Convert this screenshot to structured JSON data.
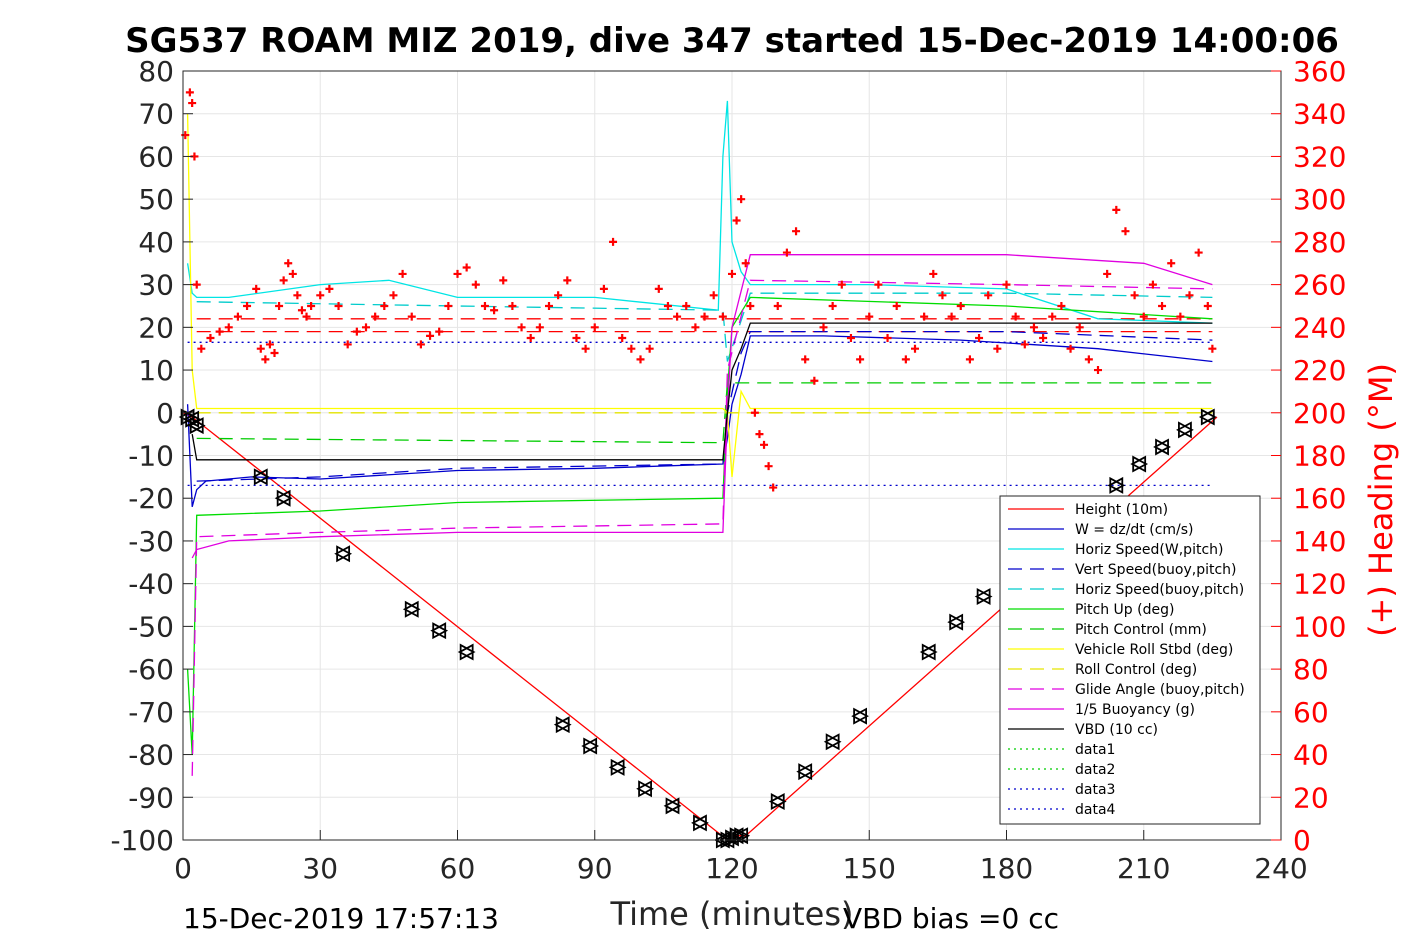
{
  "chart_data": {
    "type": "line",
    "title": "SG537 ROAM MIZ 2019, dive 347 started 15-Dec-2019 14:00:06",
    "xlabel": "Time (minutes)",
    "ylabel_right": "(+) Heading (°M)",
    "xlim": [
      0,
      240
    ],
    "ylim_left": [
      -100,
      80
    ],
    "ylim_right": [
      0,
      360
    ],
    "x_ticks": [
      "0",
      "30",
      "60",
      "90",
      "120",
      "150",
      "180",
      "210",
      "240"
    ],
    "y_ticks_left": [
      "-100",
      "-90",
      "-80",
      "-70",
      "-60",
      "-50",
      "-40",
      "-30",
      "-20",
      "-10",
      "0",
      "10",
      "20",
      "30",
      "40",
      "50",
      "60",
      "70",
      "80"
    ],
    "y_ticks_right": [
      "0",
      "20",
      "40",
      "60",
      "80",
      "100",
      "120",
      "140",
      "160",
      "180",
      "200",
      "220",
      "240",
      "260",
      "280",
      "300",
      "320",
      "340",
      "360"
    ],
    "grid": true,
    "legend_position": "bottom-right",
    "footer_left": "15-Dec-2019 17:57:13",
    "footer_right": "VBD bias =0 cc",
    "series": [
      {
        "name": "Height (10m)",
        "color": "#ff0000",
        "style": "solid",
        "x": [
          0,
          2,
          119,
          121,
          123,
          226
        ],
        "y": [
          0,
          -1,
          -100,
          -99,
          -99,
          -1
        ]
      },
      {
        "name": "W = dz/dt (cm/s)",
        "color": "#0000cc",
        "style": "solid",
        "x": [
          1,
          2,
          3,
          5,
          15,
          30,
          60,
          90,
          118,
          119,
          120,
          122,
          124,
          140,
          170,
          200,
          225
        ],
        "y": [
          2,
          -22,
          -18,
          -16,
          -15,
          -15.5,
          -13.5,
          -13,
          -12,
          -6,
          2,
          9,
          18,
          18,
          17,
          15,
          12
        ]
      },
      {
        "name": "Horiz Speed(W,pitch)",
        "color": "#00e5e5",
        "style": "solid",
        "x": [
          1,
          2,
          3,
          10,
          30,
          45,
          60,
          90,
          117,
          118,
          119,
          120,
          122,
          124,
          150,
          180,
          200,
          225
        ],
        "y": [
          35,
          28,
          27,
          27,
          30,
          31,
          27,
          27,
          24,
          60,
          73,
          40,
          33,
          30,
          30,
          29,
          22,
          21
        ]
      },
      {
        "name": "Vert Speed(buoy,pitch)",
        "color": "#0000cc",
        "style": "dash",
        "x": [
          3,
          30,
          60,
          118,
          119,
          122,
          124,
          180,
          225
        ],
        "y": [
          -16,
          -15,
          -13,
          -12,
          0,
          14,
          19,
          19,
          17
        ]
      },
      {
        "name": "Horiz Speed(buoy,pitch)",
        "color": "#00cccc",
        "style": "dash",
        "x": [
          3,
          60,
          118,
          119,
          124,
          180,
          225
        ],
        "y": [
          26,
          25,
          24,
          12,
          28,
          28,
          27
        ]
      },
      {
        "name": "Pitch Up (deg)",
        "color": "#00dd00",
        "style": "solid",
        "x": [
          1,
          2,
          3,
          30,
          60,
          118,
          119,
          120,
          124,
          180,
          225
        ],
        "y": [
          -60,
          -80,
          -24,
          -23,
          -21,
          -20,
          5,
          20,
          27,
          25,
          22
        ]
      },
      {
        "name": "Pitch Control (mm)",
        "color": "#00cc00",
        "style": "dash",
        "x": [
          3,
          118,
          119,
          225
        ],
        "y": [
          -6,
          -7,
          7,
          7
        ]
      },
      {
        "name": "Vehicle Roll Stbd (deg)",
        "color": "#ffff00",
        "style": "solid",
        "x": [
          1,
          2,
          3,
          60,
          118,
          119,
          120,
          122,
          124,
          180,
          225
        ],
        "y": [
          70,
          10,
          1,
          1,
          1,
          0,
          -15,
          5,
          1,
          1,
          1
        ]
      },
      {
        "name": "Roll Control (deg)",
        "color": "#e5e500",
        "style": "dash",
        "x": [
          3,
          118,
          119,
          225
        ],
        "y": [
          0,
          0,
          0,
          0
        ]
      },
      {
        "name": "Glide Angle (buoy,pitch)",
        "color": "#e000e0",
        "style": "dash",
        "x": [
          2,
          3,
          30,
          60,
          118,
          119,
          124,
          180,
          225
        ],
        "y": [
          -85,
          -29,
          -28,
          -27,
          -26,
          10,
          31,
          30,
          29
        ]
      },
      {
        "name": "1/5 Buoyancy (g)",
        "color": "#e000e0",
        "style": "solid",
        "x": [
          2,
          3,
          10,
          30,
          60,
          118,
          119,
          120,
          124,
          180,
          210,
          225
        ],
        "y": [
          -34,
          -32,
          -30,
          -29,
          -28,
          -28,
          0,
          20,
          37,
          37,
          35,
          30
        ]
      },
      {
        "name": "VBD (10 cc)",
        "color": "#000000",
        "style": "solid",
        "x": [
          2,
          3,
          118,
          119,
          120,
          122,
          124,
          225
        ],
        "y": [
          -5,
          -11,
          -11,
          0,
          10,
          15,
          21,
          21
        ]
      },
      {
        "name": "data1",
        "color": "#00cc00",
        "style": "dot",
        "x": [],
        "y": []
      },
      {
        "name": "data2",
        "color": "#00cc00",
        "style": "dot",
        "x": [],
        "y": []
      },
      {
        "name": "data3",
        "color": "#0000cc",
        "style": "dot",
        "x": [
          1,
          225
        ],
        "y": [
          -17,
          -17
        ]
      },
      {
        "name": "data4",
        "color": "#0000cc",
        "style": "dot",
        "x": [
          1,
          225
        ],
        "y": [
          16.5,
          16.5
        ]
      }
    ],
    "extra_lines": [
      {
        "color": "#ff0000",
        "style": "dash",
        "x": [
          3,
          225
        ],
        "y": [
          22,
          22
        ]
      },
      {
        "color": "#ff0000",
        "style": "dash",
        "x": [
          3,
          225
        ],
        "y": [
          19,
          19
        ]
      }
    ],
    "heading": {
      "axis": "right",
      "marker": "+",
      "color": "#ff0000",
      "x": [
        0.5,
        1.5,
        2,
        2.5,
        3,
        4,
        6,
        8,
        10,
        12,
        14,
        16,
        17,
        18,
        19,
        20,
        21,
        22,
        23,
        24,
        25,
        26,
        27,
        28,
        30,
        32,
        34,
        36,
        38,
        40,
        42,
        44,
        46,
        48,
        50,
        52,
        54,
        56,
        58,
        60,
        62,
        64,
        66,
        68,
        70,
        72,
        74,
        76,
        78,
        80,
        82,
        84,
        86,
        88,
        90,
        92,
        94,
        96,
        98,
        100,
        102,
        104,
        106,
        108,
        110,
        112,
        114,
        116,
        118,
        120,
        121,
        122,
        123,
        124,
        125,
        126,
        127,
        128,
        129,
        130,
        132,
        134,
        136,
        138,
        140,
        142,
        144,
        146,
        148,
        150,
        152,
        154,
        156,
        158,
        160,
        162,
        164,
        166,
        168,
        170,
        172,
        174,
        176,
        178,
        180,
        182,
        184,
        186,
        188,
        190,
        192,
        194,
        196,
        198,
        200,
        202,
        204,
        206,
        208,
        210,
        212,
        214,
        216,
        218,
        220,
        222,
        224,
        225
      ],
      "y": [
        330,
        350,
        345,
        320,
        260,
        230,
        235,
        238,
        240,
        245,
        250,
        258,
        230,
        225,
        232,
        228,
        250,
        262,
        270,
        265,
        255,
        248,
        245,
        250,
        255,
        258,
        250,
        232,
        238,
        240,
        245,
        250,
        255,
        265,
        245,
        232,
        236,
        238,
        250,
        265,
        268,
        260,
        250,
        248,
        262,
        250,
        240,
        235,
        240,
        250,
        255,
        262,
        235,
        230,
        240,
        258,
        280,
        235,
        230,
        225,
        230,
        258,
        250,
        245,
        250,
        240,
        245,
        255,
        245,
        265,
        290,
        300,
        270,
        250,
        200,
        190,
        185,
        175,
        165,
        250,
        275,
        285,
        225,
        215,
        240,
        250,
        260,
        235,
        225,
        245,
        260,
        235,
        250,
        225,
        230,
        245,
        265,
        255,
        245,
        250,
        225,
        235,
        255,
        230,
        260,
        245,
        232,
        240,
        235,
        245,
        250,
        230,
        240,
        225,
        220,
        265,
        295,
        285,
        255,
        245,
        260,
        250,
        270,
        245,
        255,
        275,
        250,
        230
      ]
    },
    "triangle_markers": {
      "axis": "left",
      "color": "#000000",
      "x": [
        1,
        2,
        3,
        17,
        22,
        35,
        50,
        56,
        62,
        83,
        89,
        95,
        101,
        107,
        113,
        118,
        119,
        120,
        121,
        122,
        130,
        136,
        142,
        148,
        163,
        169,
        175,
        204,
        209,
        214,
        219,
        224
      ],
      "y": [
        -1,
        -1.5,
        -3,
        -15,
        -20,
        -33,
        -46,
        -51,
        -56,
        -73,
        -78,
        -83,
        -88,
        -92,
        -96,
        -100,
        -100,
        -99.5,
        -99,
        -99,
        -91,
        -84,
        -77,
        -71,
        -56,
        -49,
        -43,
        -17,
        -12,
        -8,
        -4,
        -1
      ]
    }
  }
}
